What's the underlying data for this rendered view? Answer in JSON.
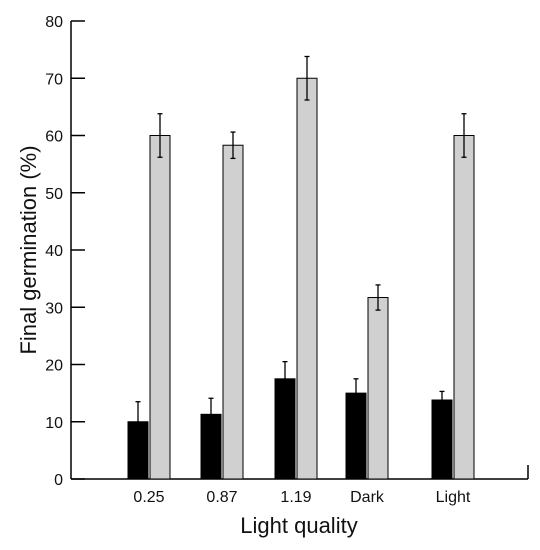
{
  "chart_data": {
    "type": "bar",
    "title": "",
    "xlabel": "Light quality",
    "ylabel": "Final germination (%)",
    "ylim": [
      0,
      80
    ],
    "yticks": [
      0,
      10,
      20,
      30,
      40,
      50,
      60,
      70,
      80
    ],
    "categories": [
      "0.25",
      "0.87",
      "1.19",
      "Dark",
      "Light"
    ],
    "series": [
      {
        "color": "#000000",
        "values": [
          10,
          11.3,
          17.5,
          15,
          13.8
        ],
        "errors": [
          3.5,
          2.8,
          3,
          2.5,
          1.5
        ]
      },
      {
        "color": "#d0d0d0",
        "values": [
          60,
          58.3,
          70,
          31.7,
          60
        ],
        "errors": [
          3.8,
          2.3,
          3.8,
          2.2,
          3.8
        ]
      }
    ],
    "grid": false,
    "legend": "none"
  }
}
